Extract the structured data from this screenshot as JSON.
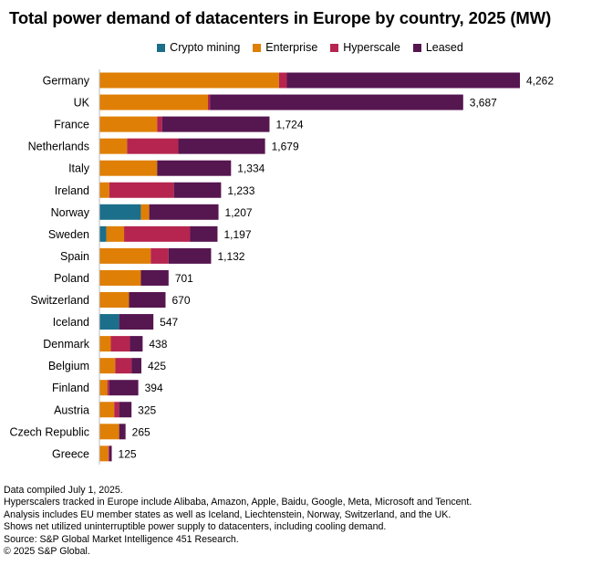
{
  "title": "Total power demand of datacenters in Europe by country, 2025 (MW)",
  "colors": {
    "Crypto mining": "#1b6f8a",
    "Enterprise": "#df7f06",
    "Hyperscale": "#b5254f",
    "Leased": "#561650"
  },
  "chart_data": {
    "type": "bar",
    "orientation": "horizontal",
    "stacked": true,
    "title": "Total power demand of datacenters in Europe by country, 2025 (MW)",
    "legend_position": "top",
    "grid": false,
    "xlim": [
      0,
      4262
    ],
    "categories": [
      "Germany",
      "UK",
      "France",
      "Netherlands",
      "Italy",
      "Ireland",
      "Norway",
      "Sweden",
      "Spain",
      "Poland",
      "Switzerland",
      "Iceland",
      "Denmark",
      "Belgium",
      "Finland",
      "Austria",
      "Czech Republic",
      "Greece"
    ],
    "totals": [
      4262,
      3687,
      1724,
      1679,
      1334,
      1233,
      1207,
      1197,
      1132,
      701,
      670,
      547,
      438,
      425,
      394,
      325,
      265,
      125
    ],
    "total_labels": [
      "4,262",
      "3,687",
      "1,724",
      "1,679",
      "1,334",
      "1,233",
      "1,207",
      "1,197",
      "1,132",
      "701",
      "670",
      "547",
      "438",
      "425",
      "394",
      "325",
      "265",
      "125"
    ],
    "series": [
      {
        "name": "Crypto mining",
        "values": [
          0,
          0,
          0,
          0,
          0,
          0,
          420,
          70,
          0,
          0,
          0,
          200,
          0,
          0,
          0,
          0,
          0,
          0
        ]
      },
      {
        "name": "Enterprise",
        "values": [
          1820,
          1100,
          585,
          280,
          585,
          100,
          85,
          180,
          520,
          420,
          300,
          0,
          115,
          160,
          80,
          150,
          200,
          90
        ]
      },
      {
        "name": "Hyperscale",
        "values": [
          80,
          20,
          50,
          520,
          0,
          655,
          0,
          670,
          180,
          0,
          0,
          0,
          195,
          165,
          20,
          50,
          0,
          10
        ]
      },
      {
        "name": "Leased",
        "values": [
          2362,
          2567,
          1089,
          879,
          749,
          478,
          702,
          277,
          432,
          281,
          370,
          347,
          128,
          100,
          294,
          125,
          65,
          25
        ]
      }
    ]
  },
  "notes": [
    "Data compiled July 1, 2025.",
    "Hyperscalers tracked in Europe include Alibaba, Amazon, Apple, Baidu, Google, Meta, Microsoft and Tencent.",
    "Analysis includes EU member states as well as Iceland, Liechtenstein, Norway, Switzerland, and the UK.",
    "Shows net utilized uninterruptible power supply to datacenters, including cooling demand.",
    "Source: S&P Global Market Intelligence 451 Research.",
    "© 2025 S&P Global."
  ]
}
